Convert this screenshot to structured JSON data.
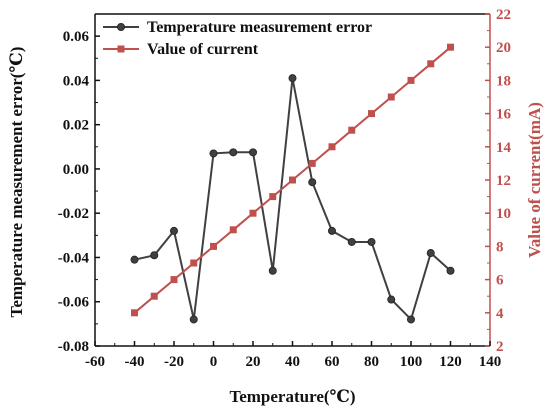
{
  "chart_data": {
    "type": "line",
    "xlabel": "Temperature(℃)",
    "ylabel_left": "Temperature measurement error(℃)",
    "ylabel_right": "Value of current(mA)",
    "xlim": [
      -60,
      140
    ],
    "ylim_left": [
      -0.08,
      0.07
    ],
    "ylim_right": [
      2,
      22
    ],
    "x_ticks": [
      -60,
      -40,
      -20,
      0,
      20,
      40,
      60,
      80,
      100,
      120,
      140
    ],
    "y_left_ticks": [
      -0.08,
      -0.06,
      -0.04,
      -0.02,
      0.0,
      0.02,
      0.04,
      0.06
    ],
    "y_left_tick_labels": [
      "-0.08",
      "-0.06",
      "-0.04",
      "-0.02",
      "0.00",
      "0.02",
      "0.04",
      "0.06"
    ],
    "y_right_ticks": [
      2,
      4,
      6,
      8,
      10,
      12,
      14,
      16,
      18,
      20,
      22
    ],
    "grid": false,
    "legend_position": "top-left",
    "colors": {
      "error": "#404040",
      "current": "#c0504d",
      "axis": "#111111"
    },
    "series": [
      {
        "name": "Temperature measurement error",
        "axis": "left",
        "marker": "circle",
        "x": [
          -40,
          -30,
          -20,
          -10,
          0,
          10,
          20,
          30,
          40,
          50,
          60,
          70,
          80,
          90,
          100,
          110,
          120
        ],
        "values": [
          -0.041,
          -0.039,
          -0.028,
          -0.068,
          0.007,
          0.0075,
          0.0075,
          -0.046,
          0.041,
          -0.006,
          -0.028,
          -0.033,
          -0.033,
          -0.059,
          -0.068,
          -0.038,
          -0.046
        ]
      },
      {
        "name": "Value of current",
        "axis": "right",
        "marker": "square",
        "x": [
          -40,
          -30,
          -20,
          -10,
          0,
          10,
          20,
          30,
          40,
          50,
          60,
          70,
          80,
          90,
          100,
          110,
          120
        ],
        "values": [
          4,
          5,
          6,
          7,
          8,
          9,
          10,
          11,
          12,
          13,
          14,
          15,
          16,
          17,
          18,
          19,
          20
        ]
      }
    ]
  }
}
